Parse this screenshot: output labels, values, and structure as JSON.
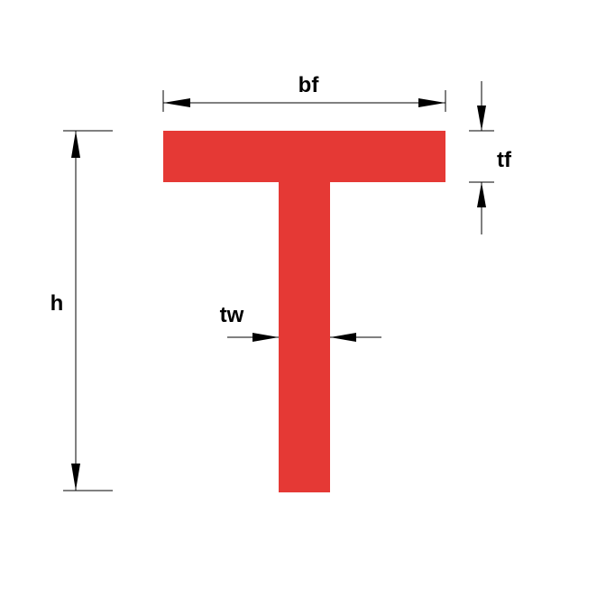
{
  "diagram": {
    "shape_color": "#E53935",
    "line_color": "#000000",
    "labels": {
      "flange_width": "bf",
      "flange_thickness": "tf",
      "height": "h",
      "web_thickness": "tw"
    }
  }
}
